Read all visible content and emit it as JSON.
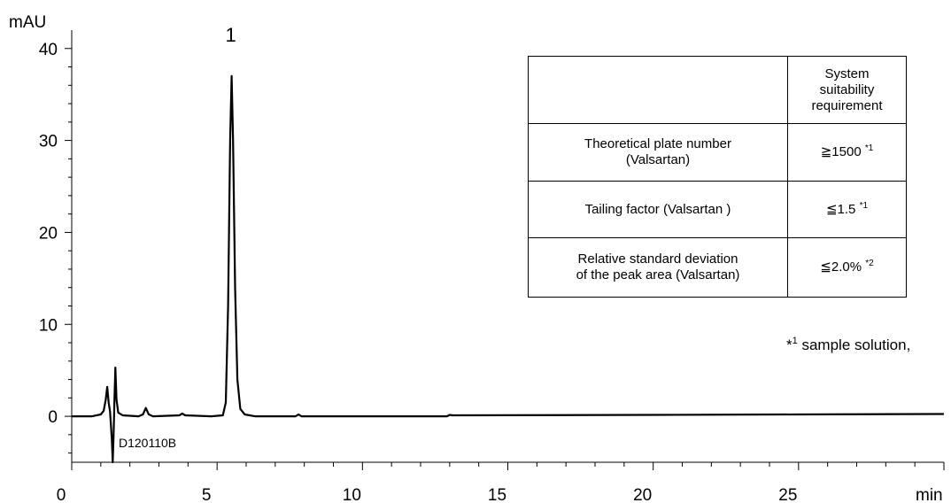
{
  "chart_data": {
    "type": "line",
    "title": "",
    "xlabel": "min",
    "ylabel": "mAU",
    "xlim": [
      0,
      30
    ],
    "ylim": [
      -5,
      42
    ],
    "x_ticks": [
      "0",
      "5",
      "10",
      "15",
      "20",
      "25"
    ],
    "y_ticks": [
      "0",
      "10",
      "20",
      "30",
      "40"
    ],
    "sample_id": "D120110B",
    "peaks": [
      {
        "label": "1",
        "retention_min": 5.5,
        "height_mAU": 37.0
      }
    ],
    "series": [
      {
        "points": [
          [
            0,
            0.0
          ],
          [
            0.7,
            0.0
          ],
          [
            1.0,
            0.2
          ],
          [
            1.1,
            0.6
          ],
          [
            1.17,
            1.8
          ],
          [
            1.22,
            3.2
          ],
          [
            1.27,
            1.5
          ],
          [
            1.32,
            0.5
          ],
          [
            1.38,
            -2.5
          ],
          [
            1.41,
            -5.0
          ],
          [
            1.44,
            -2.0
          ],
          [
            1.47,
            2.0
          ],
          [
            1.5,
            5.3
          ],
          [
            1.54,
            1.8
          ],
          [
            1.6,
            0.4
          ],
          [
            1.75,
            0.1
          ],
          [
            2.3,
            0.0
          ],
          [
            2.45,
            0.2
          ],
          [
            2.55,
            0.9
          ],
          [
            2.65,
            0.2
          ],
          [
            2.8,
            0.0
          ],
          [
            3.7,
            0.1
          ],
          [
            3.8,
            0.3
          ],
          [
            3.9,
            0.1
          ],
          [
            4.8,
            0.0
          ],
          [
            5.2,
            0.1
          ],
          [
            5.3,
            1.5
          ],
          [
            5.38,
            12.0
          ],
          [
            5.45,
            30.0
          ],
          [
            5.5,
            37.0
          ],
          [
            5.55,
            30.0
          ],
          [
            5.62,
            14.0
          ],
          [
            5.7,
            4.0
          ],
          [
            5.8,
            0.8
          ],
          [
            5.95,
            0.2
          ],
          [
            6.3,
            0.0
          ],
          [
            7.7,
            0.0
          ],
          [
            7.8,
            0.2
          ],
          [
            7.9,
            0.0
          ],
          [
            12.9,
            0.0
          ],
          [
            13.0,
            0.15
          ],
          [
            13.1,
            0.1
          ],
          [
            20.0,
            0.15
          ],
          [
            25.0,
            0.2
          ],
          [
            30.0,
            0.25
          ]
        ]
      }
    ]
  },
  "table": {
    "header": [
      "",
      "System\nsuitability\nrequirement"
    ],
    "rows": [
      {
        "item": "Theoretical plate number\n(Valsartan)",
        "requirement": "≧1500 ",
        "note": "*1"
      },
      {
        "item": "Tailing factor (Valsartan )",
        "requirement": "≦1.5 ",
        "note": "*1"
      },
      {
        "item": "Relative standard deviation\nof the peak area (Valsartan)",
        "requirement": "≦2.0% ",
        "note": "*2"
      }
    ]
  },
  "footnote": {
    "mark": "*",
    "sup": "1",
    "text": " sample solution, "
  }
}
